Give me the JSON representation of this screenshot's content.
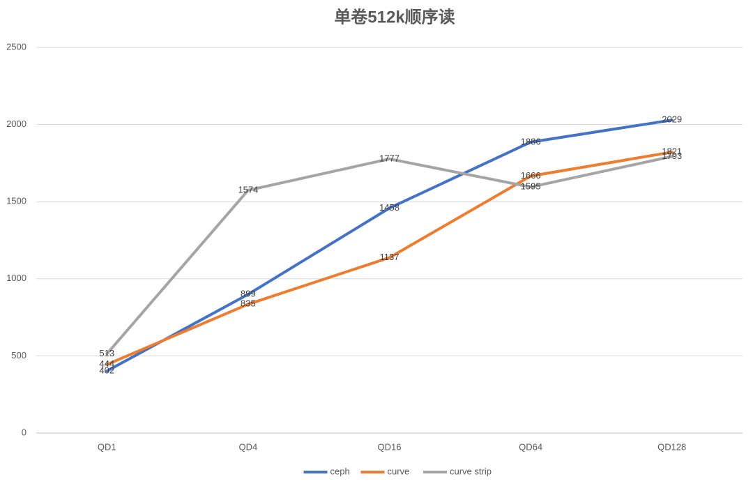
{
  "chart_data": {
    "type": "line",
    "title": "单卷512k顺序读",
    "categories": [
      "QD1",
      "QD4",
      "QD16",
      "QD64",
      "QD128"
    ],
    "series": [
      {
        "name": "ceph",
        "color": "#4472c4",
        "values": [
          402,
          899,
          1458,
          1886,
          2029
        ]
      },
      {
        "name": "curve",
        "color": "#ed7d31",
        "values": [
          444,
          835,
          1137,
          1666,
          1821
        ]
      },
      {
        "name": "curve strip",
        "color": "#a5a5a5",
        "values": [
          513,
          1574,
          1777,
          1595,
          1793
        ]
      }
    ],
    "ylim": [
      0,
      2500
    ],
    "yticks": [
      0,
      500,
      1000,
      1500,
      2000,
      2500
    ],
    "grid": true,
    "legend": "bottom"
  }
}
